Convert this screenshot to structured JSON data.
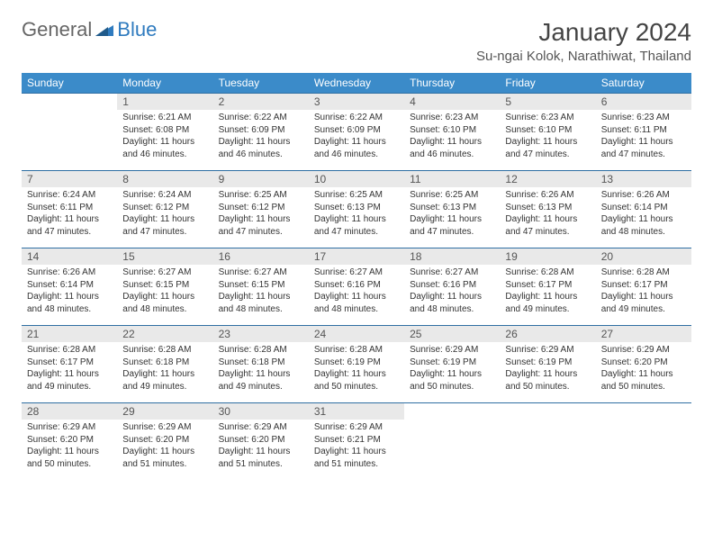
{
  "logo": {
    "text1": "General",
    "text2": "Blue"
  },
  "title": "January 2024",
  "location": "Su-ngai Kolok, Narathiwat, Thailand",
  "colors": {
    "header_bg": "#3b8bc9",
    "header_text": "#ffffff",
    "row_border": "#2f6fa3",
    "daynum_bg": "#e9e9e9",
    "logo_accent": "#2f7bbf"
  },
  "weekdays": [
    "Sunday",
    "Monday",
    "Tuesday",
    "Wednesday",
    "Thursday",
    "Friday",
    "Saturday"
  ],
  "weeks": [
    [
      null,
      {
        "n": "1",
        "sr": "Sunrise: 6:21 AM",
        "ss": "Sunset: 6:08 PM",
        "d1": "Daylight: 11 hours",
        "d2": "and 46 minutes."
      },
      {
        "n": "2",
        "sr": "Sunrise: 6:22 AM",
        "ss": "Sunset: 6:09 PM",
        "d1": "Daylight: 11 hours",
        "d2": "and 46 minutes."
      },
      {
        "n": "3",
        "sr": "Sunrise: 6:22 AM",
        "ss": "Sunset: 6:09 PM",
        "d1": "Daylight: 11 hours",
        "d2": "and 46 minutes."
      },
      {
        "n": "4",
        "sr": "Sunrise: 6:23 AM",
        "ss": "Sunset: 6:10 PM",
        "d1": "Daylight: 11 hours",
        "d2": "and 46 minutes."
      },
      {
        "n": "5",
        "sr": "Sunrise: 6:23 AM",
        "ss": "Sunset: 6:10 PM",
        "d1": "Daylight: 11 hours",
        "d2": "and 47 minutes."
      },
      {
        "n": "6",
        "sr": "Sunrise: 6:23 AM",
        "ss": "Sunset: 6:11 PM",
        "d1": "Daylight: 11 hours",
        "d2": "and 47 minutes."
      }
    ],
    [
      {
        "n": "7",
        "sr": "Sunrise: 6:24 AM",
        "ss": "Sunset: 6:11 PM",
        "d1": "Daylight: 11 hours",
        "d2": "and 47 minutes."
      },
      {
        "n": "8",
        "sr": "Sunrise: 6:24 AM",
        "ss": "Sunset: 6:12 PM",
        "d1": "Daylight: 11 hours",
        "d2": "and 47 minutes."
      },
      {
        "n": "9",
        "sr": "Sunrise: 6:25 AM",
        "ss": "Sunset: 6:12 PM",
        "d1": "Daylight: 11 hours",
        "d2": "and 47 minutes."
      },
      {
        "n": "10",
        "sr": "Sunrise: 6:25 AM",
        "ss": "Sunset: 6:13 PM",
        "d1": "Daylight: 11 hours",
        "d2": "and 47 minutes."
      },
      {
        "n": "11",
        "sr": "Sunrise: 6:25 AM",
        "ss": "Sunset: 6:13 PM",
        "d1": "Daylight: 11 hours",
        "d2": "and 47 minutes."
      },
      {
        "n": "12",
        "sr": "Sunrise: 6:26 AM",
        "ss": "Sunset: 6:13 PM",
        "d1": "Daylight: 11 hours",
        "d2": "and 47 minutes."
      },
      {
        "n": "13",
        "sr": "Sunrise: 6:26 AM",
        "ss": "Sunset: 6:14 PM",
        "d1": "Daylight: 11 hours",
        "d2": "and 48 minutes."
      }
    ],
    [
      {
        "n": "14",
        "sr": "Sunrise: 6:26 AM",
        "ss": "Sunset: 6:14 PM",
        "d1": "Daylight: 11 hours",
        "d2": "and 48 minutes."
      },
      {
        "n": "15",
        "sr": "Sunrise: 6:27 AM",
        "ss": "Sunset: 6:15 PM",
        "d1": "Daylight: 11 hours",
        "d2": "and 48 minutes."
      },
      {
        "n": "16",
        "sr": "Sunrise: 6:27 AM",
        "ss": "Sunset: 6:15 PM",
        "d1": "Daylight: 11 hours",
        "d2": "and 48 minutes."
      },
      {
        "n": "17",
        "sr": "Sunrise: 6:27 AM",
        "ss": "Sunset: 6:16 PM",
        "d1": "Daylight: 11 hours",
        "d2": "and 48 minutes."
      },
      {
        "n": "18",
        "sr": "Sunrise: 6:27 AM",
        "ss": "Sunset: 6:16 PM",
        "d1": "Daylight: 11 hours",
        "d2": "and 48 minutes."
      },
      {
        "n": "19",
        "sr": "Sunrise: 6:28 AM",
        "ss": "Sunset: 6:17 PM",
        "d1": "Daylight: 11 hours",
        "d2": "and 49 minutes."
      },
      {
        "n": "20",
        "sr": "Sunrise: 6:28 AM",
        "ss": "Sunset: 6:17 PM",
        "d1": "Daylight: 11 hours",
        "d2": "and 49 minutes."
      }
    ],
    [
      {
        "n": "21",
        "sr": "Sunrise: 6:28 AM",
        "ss": "Sunset: 6:17 PM",
        "d1": "Daylight: 11 hours",
        "d2": "and 49 minutes."
      },
      {
        "n": "22",
        "sr": "Sunrise: 6:28 AM",
        "ss": "Sunset: 6:18 PM",
        "d1": "Daylight: 11 hours",
        "d2": "and 49 minutes."
      },
      {
        "n": "23",
        "sr": "Sunrise: 6:28 AM",
        "ss": "Sunset: 6:18 PM",
        "d1": "Daylight: 11 hours",
        "d2": "and 49 minutes."
      },
      {
        "n": "24",
        "sr": "Sunrise: 6:28 AM",
        "ss": "Sunset: 6:19 PM",
        "d1": "Daylight: 11 hours",
        "d2": "and 50 minutes."
      },
      {
        "n": "25",
        "sr": "Sunrise: 6:29 AM",
        "ss": "Sunset: 6:19 PM",
        "d1": "Daylight: 11 hours",
        "d2": "and 50 minutes."
      },
      {
        "n": "26",
        "sr": "Sunrise: 6:29 AM",
        "ss": "Sunset: 6:19 PM",
        "d1": "Daylight: 11 hours",
        "d2": "and 50 minutes."
      },
      {
        "n": "27",
        "sr": "Sunrise: 6:29 AM",
        "ss": "Sunset: 6:20 PM",
        "d1": "Daylight: 11 hours",
        "d2": "and 50 minutes."
      }
    ],
    [
      {
        "n": "28",
        "sr": "Sunrise: 6:29 AM",
        "ss": "Sunset: 6:20 PM",
        "d1": "Daylight: 11 hours",
        "d2": "and 50 minutes."
      },
      {
        "n": "29",
        "sr": "Sunrise: 6:29 AM",
        "ss": "Sunset: 6:20 PM",
        "d1": "Daylight: 11 hours",
        "d2": "and 51 minutes."
      },
      {
        "n": "30",
        "sr": "Sunrise: 6:29 AM",
        "ss": "Sunset: 6:20 PM",
        "d1": "Daylight: 11 hours",
        "d2": "and 51 minutes."
      },
      {
        "n": "31",
        "sr": "Sunrise: 6:29 AM",
        "ss": "Sunset: 6:21 PM",
        "d1": "Daylight: 11 hours",
        "d2": "and 51 minutes."
      },
      null,
      null,
      null
    ]
  ]
}
